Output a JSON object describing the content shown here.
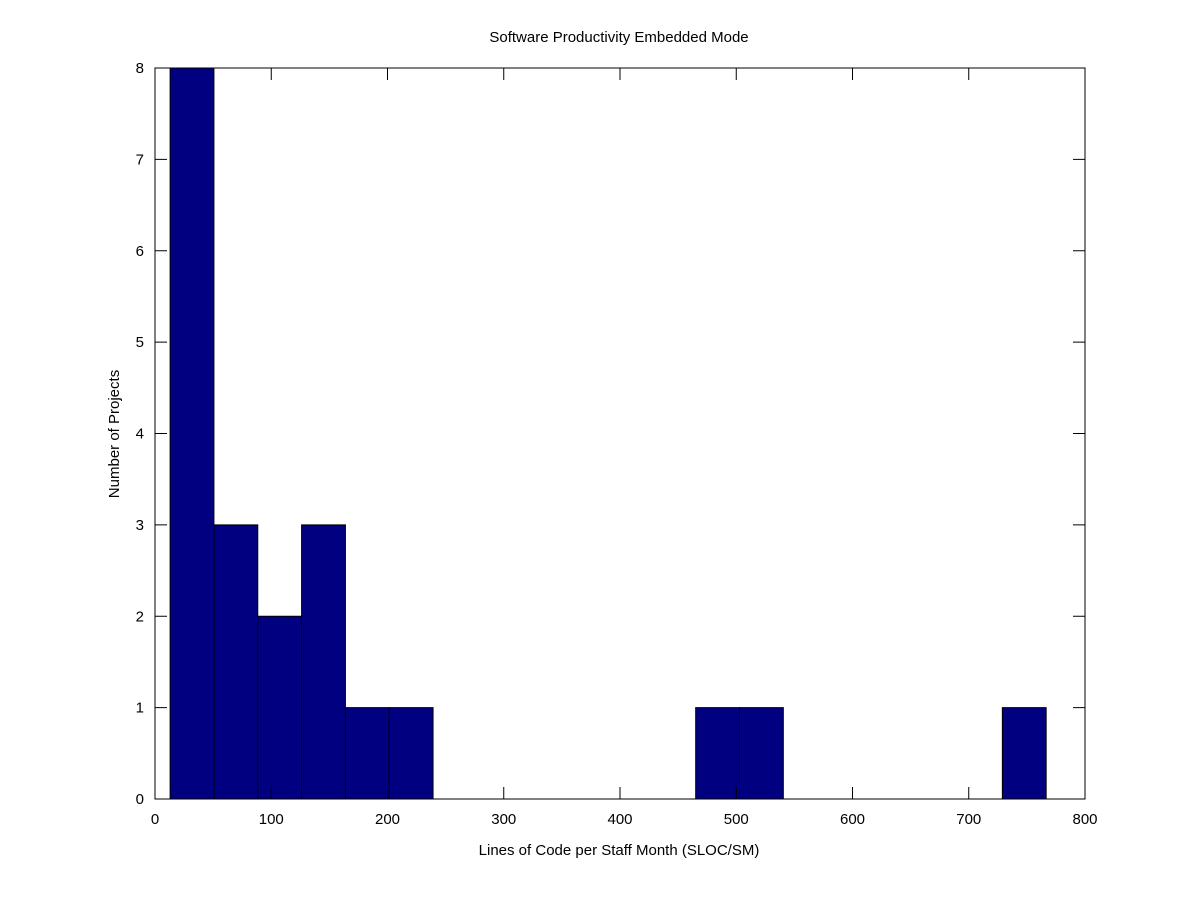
{
  "chart_data": {
    "type": "bar",
    "title": "Software Productivity Embedded Mode",
    "xlabel": "Lines of Code per Staff Month (SLOC/SM)",
    "ylabel": "Number of Projects",
    "xlim": [
      0,
      800
    ],
    "ylim": [
      0,
      8
    ],
    "xticks": [
      "0",
      "100",
      "200",
      "300",
      "400",
      "500",
      "600",
      "700",
      "800"
    ],
    "yticks": [
      "0",
      "1",
      "2",
      "3",
      "4",
      "5",
      "6",
      "7",
      "8"
    ],
    "grid": false,
    "bar_color": "#000080",
    "bar_edge_color": "#000000",
    "bins": [
      {
        "x0": 13,
        "x1": 50.7,
        "count": 8
      },
      {
        "x0": 50.7,
        "x1": 88.4,
        "count": 3
      },
      {
        "x0": 88.4,
        "x1": 126.1,
        "count": 2
      },
      {
        "x0": 126.1,
        "x1": 163.8,
        "count": 3
      },
      {
        "x0": 163.8,
        "x1": 201.5,
        "count": 1
      },
      {
        "x0": 201.5,
        "x1": 239.2,
        "count": 1
      },
      {
        "x0": 465.1,
        "x1": 502.8,
        "count": 1
      },
      {
        "x0": 502.8,
        "x1": 540.5,
        "count": 1
      },
      {
        "x0": 728.9,
        "x1": 766.6,
        "count": 1
      }
    ]
  }
}
